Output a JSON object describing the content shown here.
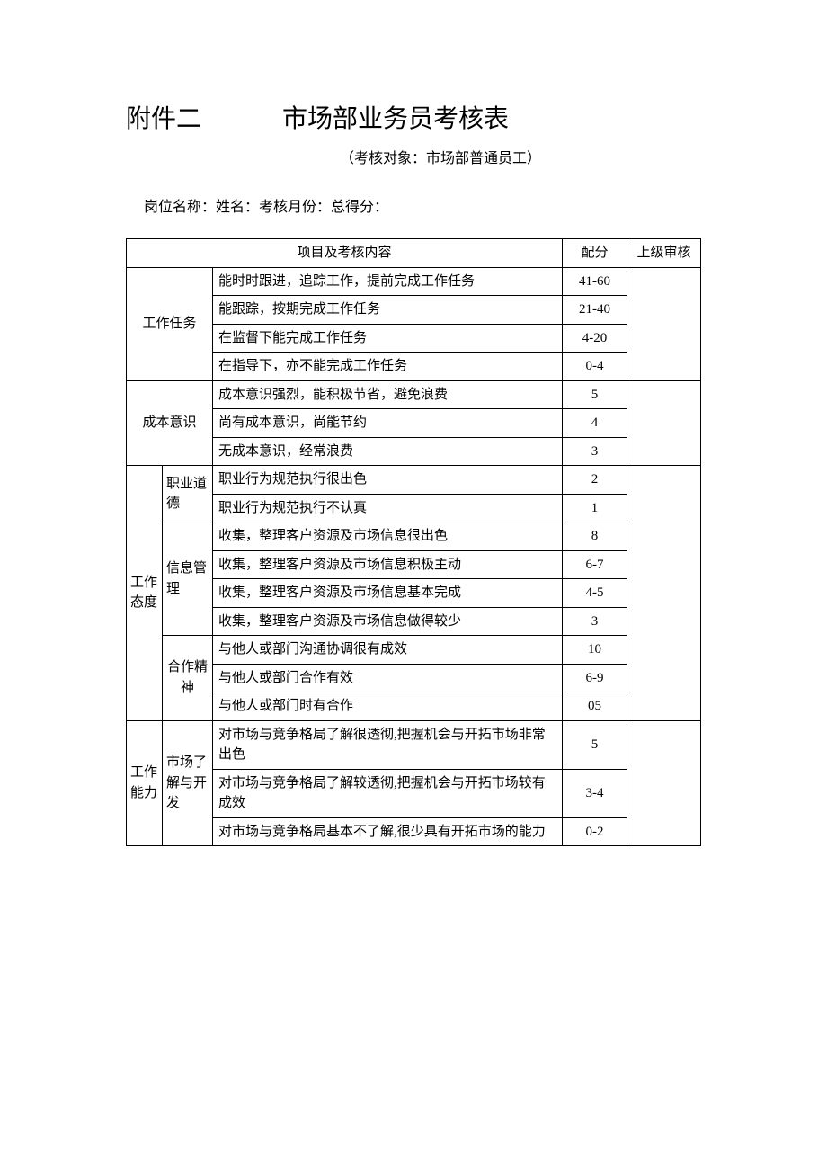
{
  "header": {
    "attachment": "附件二",
    "title": "市场部业务员考核表",
    "subtitle": "（考核对象：市场部普通员工）",
    "form_info": "岗位名称：姓名：考核月份：总得分："
  },
  "table": {
    "header": {
      "content": "项目及考核内容",
      "score": "配分",
      "audit": "上级审核"
    },
    "sections": {
      "work_task": {
        "label": "工作任务",
        "rows": [
          {
            "content": "能时时跟进，追踪工作，提前完成工作任务",
            "score": "41-60"
          },
          {
            "content": "能跟踪，按期完成工作任务",
            "score": "21-40"
          },
          {
            "content": "在监督下能完成工作任务",
            "score": "4-20"
          },
          {
            "content": "在指导下，亦不能完成工作任务",
            "score": "0-4"
          }
        ]
      },
      "cost_awareness": {
        "label": "成本意识",
        "rows": [
          {
            "content": "成本意识强烈，能积极节省，避免浪费",
            "score": "5"
          },
          {
            "content": "尚有成本意识，尚能节约",
            "score": "4"
          },
          {
            "content": "无成本意识，经常浪费",
            "score": "3"
          }
        ]
      },
      "work_attitude": {
        "label": "工作态度",
        "subsections": {
          "ethics": {
            "label": "职业道德",
            "rows": [
              {
                "content": "职业行为规范执行很出色",
                "score": "2"
              },
              {
                "content": "职业行为规范执行不认真",
                "score": "1"
              }
            ]
          },
          "info_mgmt": {
            "label": "信息管理",
            "rows": [
              {
                "content": "收集，整理客户资源及市场信息很出色",
                "score": "8"
              },
              {
                "content": "收集，整理客户资源及市场信息积极主动",
                "score": "6-7"
              },
              {
                "content": "收集，整理客户资源及市场信息基本完成",
                "score": "4-5"
              },
              {
                "content": "收集，整理客户资源及市场信息做得较少",
                "score": "3"
              }
            ]
          },
          "cooperation": {
            "label": "合作精神",
            "rows": [
              {
                "content": "与他人或部门沟通协调很有成效",
                "score": "10"
              },
              {
                "content": "与他人或部门合作有效",
                "score": "6-9"
              },
              {
                "content": "与他人或部门时有合作",
                "score": "05"
              }
            ]
          }
        }
      },
      "work_ability": {
        "label": "工作能力",
        "subsections": {
          "market_dev": {
            "label": "市场了解与开发",
            "rows": [
              {
                "content": "对市场与竞争格局了解很透彻,把握机会与开拓市场非常出色",
                "score": "5"
              },
              {
                "content": "对市场与竞争格局了解较透彻,把握机会与开拓市场较有成效",
                "score": "3-4"
              },
              {
                "content": "对市场与竞争格局基本不了解,很少具有开拓市场的能力",
                "score": "0-2"
              }
            ]
          }
        }
      }
    }
  },
  "style": {
    "background_color": "#ffffff",
    "text_color": "#000000",
    "border_color": "#000000",
    "title_fontsize": 28,
    "body_fontsize": 16,
    "table_fontsize": 15
  }
}
